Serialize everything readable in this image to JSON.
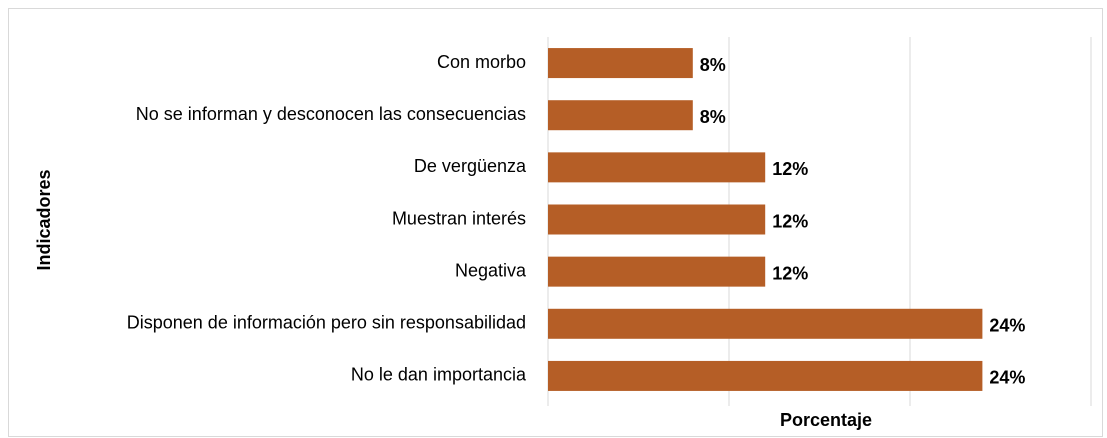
{
  "chart_data": {
    "type": "bar",
    "orientation": "horizontal",
    "categories": [
      "Con morbo",
      "No se informan y desconocen las consecuencias",
      "De vergüenza ",
      "Muestran interés",
      "Negativa",
      "Disponen de información pero sin responsabilidad",
      "No le dan importancia"
    ],
    "values": [
      8,
      8,
      12,
      12,
      12,
      24,
      24
    ],
    "value_labels": [
      "8%",
      "8%",
      "12%",
      "12%",
      "12%",
      "24%",
      "24%"
    ],
    "color": "#b55e26",
    "xlabel": "Porcentaje",
    "ylabel": "Indicadores",
    "xlim": [
      0,
      30
    ],
    "xticks": [
      0,
      10,
      20,
      30
    ],
    "grid": true
  }
}
